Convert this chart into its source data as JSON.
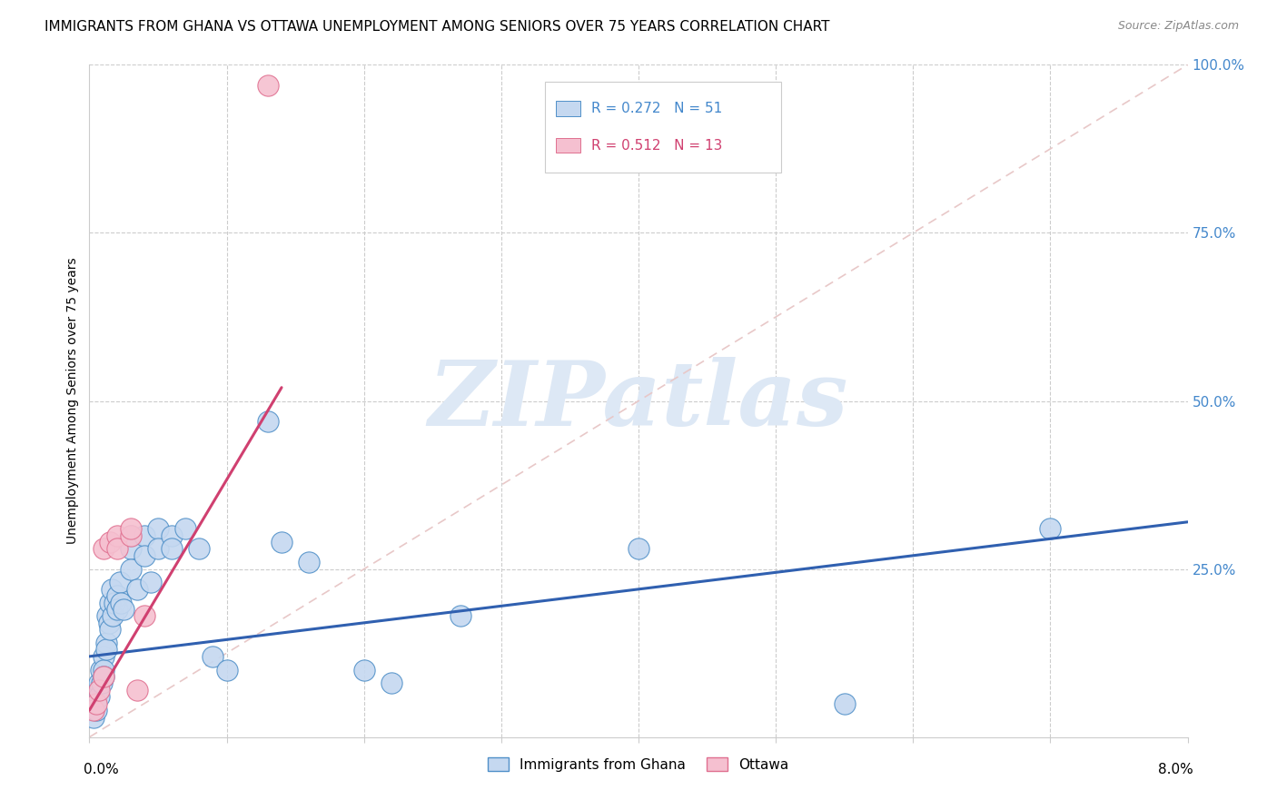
{
  "title": "IMMIGRANTS FROM GHANA VS OTTAWA UNEMPLOYMENT AMONG SENIORS OVER 75 YEARS CORRELATION CHART",
  "source": "Source: ZipAtlas.com",
  "ylabel": "Unemployment Among Seniors over 75 years",
  "right_yticks": [
    0.0,
    0.25,
    0.5,
    0.75,
    1.0
  ],
  "right_yticklabels": [
    "",
    "25.0%",
    "50.0%",
    "75.0%",
    "100.0%"
  ],
  "xlim": [
    0.0,
    0.08
  ],
  "ylim": [
    0.0,
    1.0
  ],
  "legend_r_blue": "R = 0.272",
  "legend_n_blue": "N = 51",
  "legend_r_pink": "R = 0.512",
  "legend_n_pink": "N = 13",
  "legend_label_blue": "Immigrants from Ghana",
  "legend_label_pink": "Ottawa",
  "blue_fill": "#c5d8f0",
  "blue_edge": "#5090c8",
  "pink_fill": "#f5c0d0",
  "pink_edge": "#e07090",
  "blue_line": "#3060b0",
  "pink_line": "#d04070",
  "dash_color": "#e8c8c8",
  "watermark_color": "#dde8f5",
  "ghana_x": [
    0.0003,
    0.0003,
    0.0004,
    0.0005,
    0.0005,
    0.0006,
    0.0007,
    0.0007,
    0.0008,
    0.0009,
    0.001,
    0.001,
    0.001,
    0.0012,
    0.0012,
    0.0013,
    0.0014,
    0.0015,
    0.0015,
    0.0016,
    0.0017,
    0.0018,
    0.002,
    0.002,
    0.0022,
    0.0023,
    0.0025,
    0.003,
    0.003,
    0.003,
    0.0035,
    0.004,
    0.004,
    0.0045,
    0.005,
    0.005,
    0.006,
    0.006,
    0.007,
    0.008,
    0.009,
    0.01,
    0.013,
    0.014,
    0.016,
    0.02,
    0.022,
    0.027,
    0.04,
    0.055,
    0.07
  ],
  "ghana_y": [
    0.04,
    0.03,
    0.05,
    0.06,
    0.04,
    0.07,
    0.08,
    0.06,
    0.1,
    0.08,
    0.12,
    0.1,
    0.09,
    0.14,
    0.13,
    0.18,
    0.17,
    0.2,
    0.16,
    0.22,
    0.18,
    0.2,
    0.21,
    0.19,
    0.23,
    0.2,
    0.19,
    0.3,
    0.28,
    0.25,
    0.22,
    0.3,
    0.27,
    0.23,
    0.31,
    0.28,
    0.3,
    0.28,
    0.31,
    0.28,
    0.12,
    0.1,
    0.47,
    0.29,
    0.26,
    0.1,
    0.08,
    0.18,
    0.28,
    0.05,
    0.31
  ],
  "ottawa_x": [
    0.0003,
    0.0005,
    0.0007,
    0.001,
    0.001,
    0.0015,
    0.002,
    0.002,
    0.003,
    0.003,
    0.0035,
    0.004,
    0.013
  ],
  "ottawa_y": [
    0.04,
    0.05,
    0.07,
    0.09,
    0.28,
    0.29,
    0.3,
    0.28,
    0.3,
    0.31,
    0.07,
    0.18,
    0.97
  ],
  "blue_trendline": [
    0.0,
    0.08,
    0.12,
    0.32
  ],
  "pink_trendline": [
    0.0,
    0.014,
    0.04,
    0.52
  ]
}
